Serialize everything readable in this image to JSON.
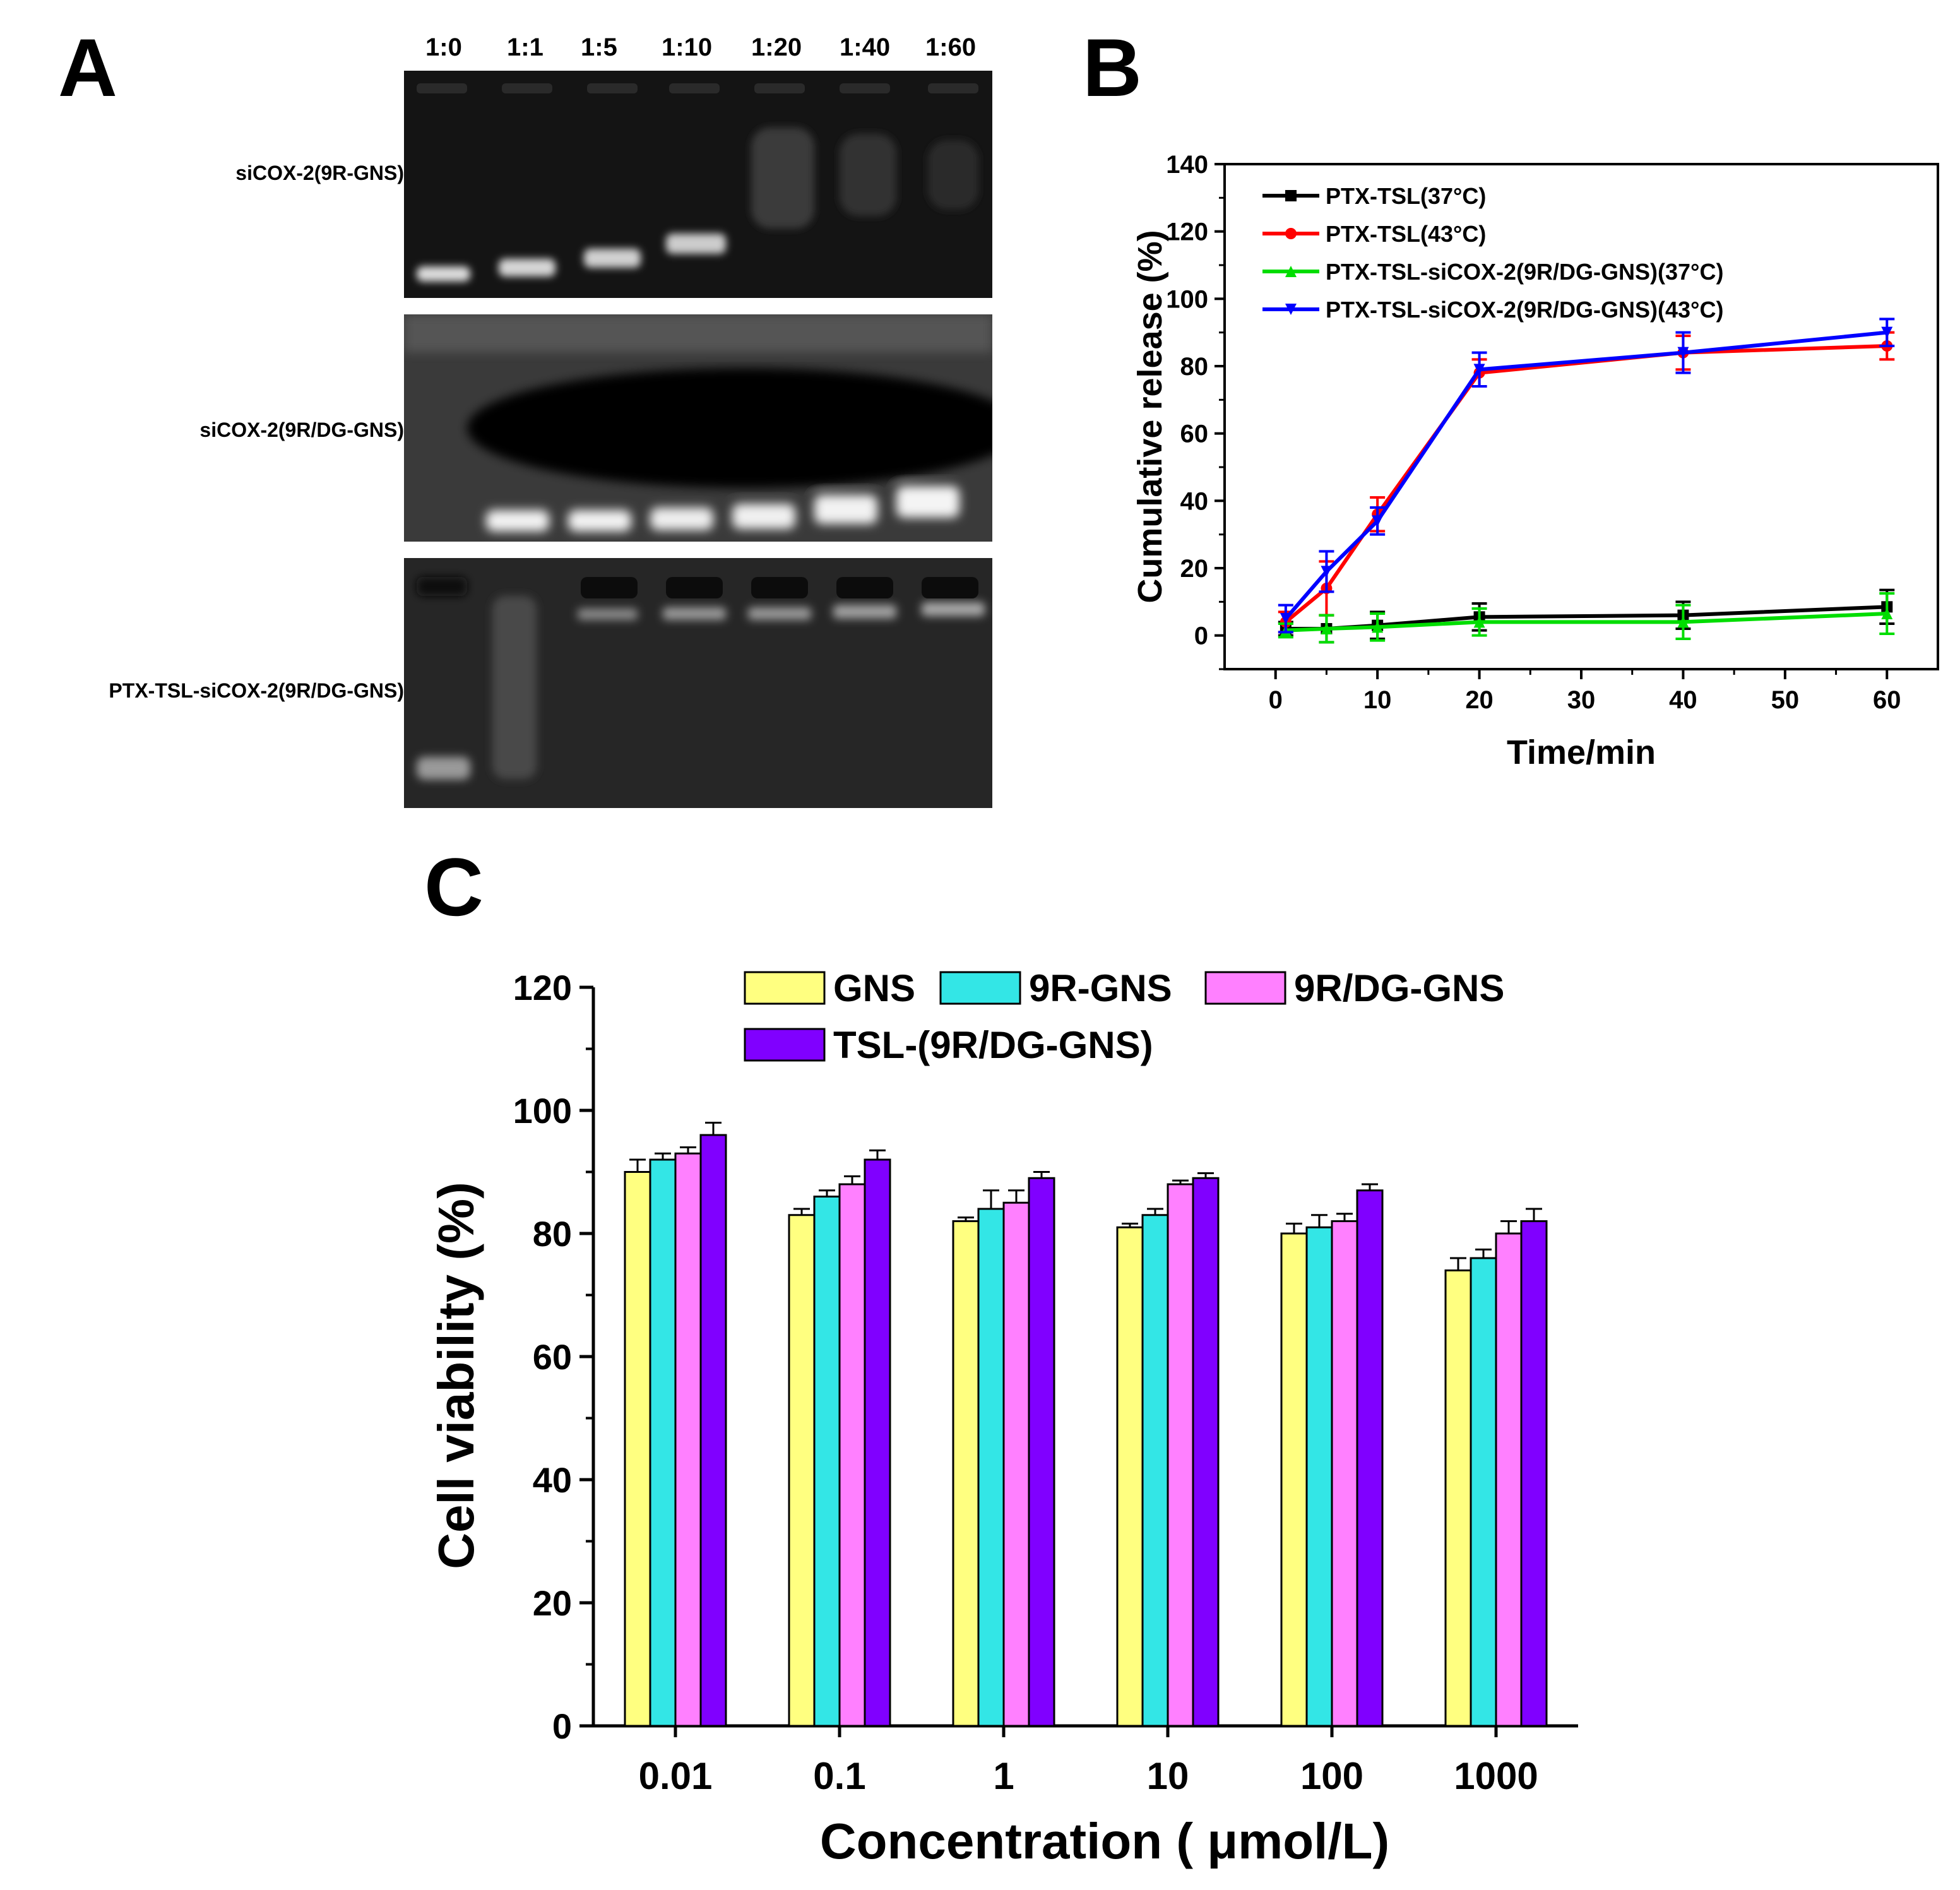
{
  "panels": {
    "a": "A",
    "b": "B",
    "c": "C"
  },
  "gel": {
    "lanes": [
      "1:0",
      "1:1",
      "1:5",
      "1:10",
      "1:20",
      "1:40",
      "1:60"
    ],
    "rows": [
      "siCOX-2(9R-GNS)",
      "siCOX-2(9R/DG-GNS)",
      "PTX-TSL-siCOX-2(9R/DG-GNS)"
    ]
  },
  "chart_data": [
    {
      "type": "line",
      "xlabel": "Time/min",
      "ylabel": "Cumulative release (%)",
      "xlim": [
        -5,
        65
      ],
      "ylim": [
        -10,
        140
      ],
      "x_ticks": [
        "0",
        "10",
        "20",
        "30",
        "40",
        "50",
        "60"
      ],
      "y_ticks": [
        "0",
        "20",
        "40",
        "60",
        "80",
        "100",
        "120",
        "140"
      ],
      "x": [
        1,
        5,
        10,
        20,
        40,
        60
      ],
      "series": [
        {
          "name": "PTX-TSL(37°C)",
          "color": "#000000",
          "marker": "square",
          "values": [
            2,
            2,
            3,
            5.5,
            6,
            8.5
          ],
          "errors": [
            2,
            4,
            4,
            4,
            4,
            5
          ]
        },
        {
          "name": "PTX-TSL(43°C)",
          "color": "#ff0000",
          "marker": "circle",
          "values": [
            4,
            14,
            36,
            78,
            84,
            86
          ],
          "errors": [
            3,
            8,
            5,
            4,
            5,
            4
          ]
        },
        {
          "name": "PTX-TSL-siCOX-2(9R/DG-GNS)(37°C)",
          "color": "#00dd00",
          "marker": "triangle-up",
          "values": [
            1.5,
            2,
            2.5,
            4,
            4,
            6.5
          ],
          "errors": [
            2,
            4,
            4,
            4,
            5,
            6
          ]
        },
        {
          "name": "PTX-TSL-siCOX-2(9R/DG-GNS)(43°C)",
          "color": "#0000ff",
          "marker": "triangle-down",
          "values": [
            5,
            19,
            34,
            79,
            84,
            90
          ],
          "errors": [
            4,
            6,
            4,
            5,
            6,
            4
          ]
        }
      ],
      "legend": "top-left"
    },
    {
      "type": "bar",
      "xlabel": "Concentration ( μmol/L)",
      "ylabel": "Cell viability (%)",
      "ylim": [
        0,
        120
      ],
      "y_ticks": [
        "0",
        "20",
        "40",
        "60",
        "80",
        "100",
        "120"
      ],
      "categories": [
        "0.01",
        "0.1",
        "1",
        "10",
        "100",
        "1000"
      ],
      "series": [
        {
          "name": "GNS",
          "color": "#ffff80",
          "values": [
            90,
            83,
            82,
            81,
            80,
            74
          ],
          "errors": [
            2,
            1,
            0.6,
            0.6,
            1.6,
            2
          ]
        },
        {
          "name": "9R-GNS",
          "color": "#33e6e6",
          "values": [
            92,
            86,
            84,
            83,
            81,
            76
          ],
          "errors": [
            1,
            1,
            3,
            1,
            2,
            1.4
          ]
        },
        {
          "name": "9R/DG-GNS",
          "color": "#ff80ff",
          "values": [
            93,
            88,
            85,
            88,
            82,
            80
          ],
          "errors": [
            1,
            1.3,
            2,
            0.6,
            1.2,
            2
          ]
        },
        {
          "name": "TSL-(9R/DG-GNS)",
          "color": "#8000ff",
          "values": [
            96,
            92,
            89,
            89,
            87,
            82
          ],
          "errors": [
            2,
            1.5,
            1,
            0.8,
            1,
            2
          ]
        }
      ],
      "legend": "top"
    }
  ]
}
